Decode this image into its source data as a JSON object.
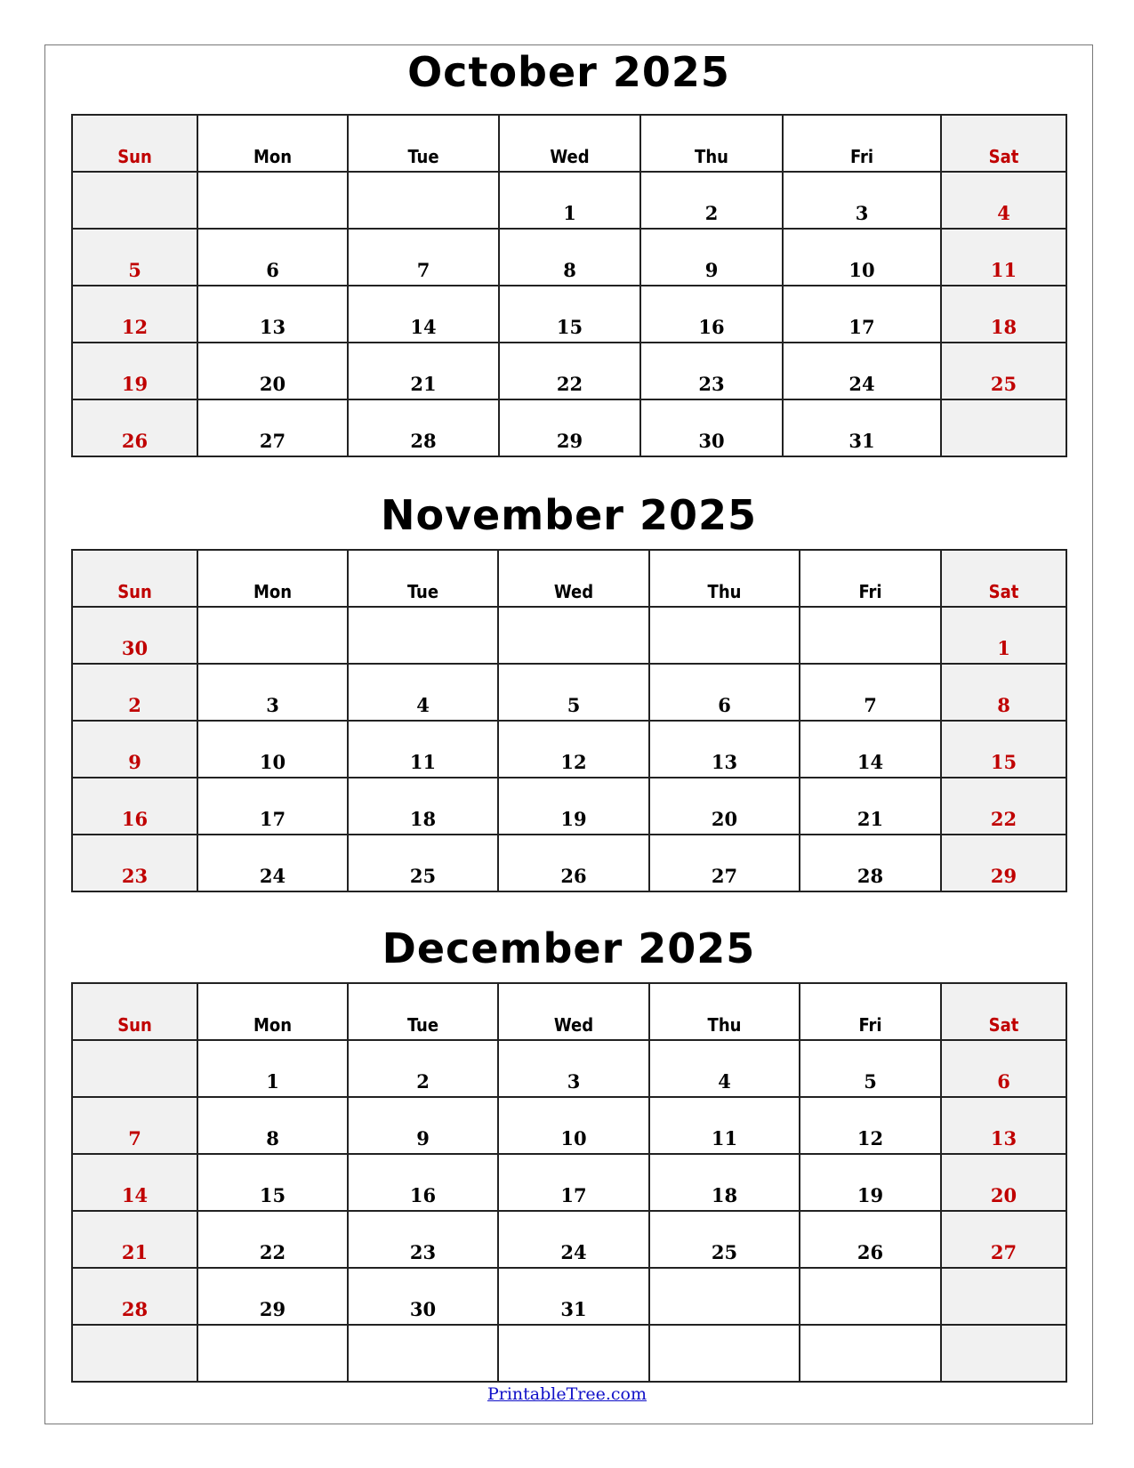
{
  "weekdays": [
    "Sun",
    "Mon",
    "Tue",
    "Wed",
    "Thu",
    "Fri",
    "Sat"
  ],
  "colors": {
    "weekend_text": "#c00000",
    "weekend_bg": "#f1f1f1",
    "link": "#1010c8"
  },
  "months": [
    {
      "title": "October 2025",
      "weeks": [
        [
          "",
          "",
          "",
          "1",
          "2",
          "3",
          "4"
        ],
        [
          "5",
          "6",
          "7",
          "8",
          "9",
          "10",
          "11"
        ],
        [
          "12",
          "13",
          "14",
          "15",
          "16",
          "17",
          "18"
        ],
        [
          "19",
          "20",
          "21",
          "22",
          "23",
          "24",
          "25"
        ],
        [
          "26",
          "27",
          "28",
          "29",
          "30",
          "31",
          ""
        ]
      ]
    },
    {
      "title": "November 2025",
      "weeks": [
        [
          "30",
          "",
          "",
          "",
          "",
          "",
          "1"
        ],
        [
          "2",
          "3",
          "4",
          "5",
          "6",
          "7",
          "8"
        ],
        [
          "9",
          "10",
          "11",
          "12",
          "13",
          "14",
          "15"
        ],
        [
          "16",
          "17",
          "18",
          "19",
          "20",
          "21",
          "22"
        ],
        [
          "23",
          "24",
          "25",
          "26",
          "27",
          "28",
          "29"
        ]
      ]
    },
    {
      "title": "December 2025",
      "weeks": [
        [
          "",
          "1",
          "2",
          "3",
          "4",
          "5",
          "6"
        ],
        [
          "7",
          "8",
          "9",
          "10",
          "11",
          "12",
          "13"
        ],
        [
          "14",
          "15",
          "16",
          "17",
          "18",
          "19",
          "20"
        ],
        [
          "21",
          "22",
          "23",
          "24",
          "25",
          "26",
          "27"
        ],
        [
          "28",
          "29",
          "30",
          "31",
          "",
          "",
          ""
        ],
        [
          "",
          "",
          "",
          "",
          "",
          "",
          ""
        ]
      ]
    }
  ],
  "footer": {
    "link_text": "PrintableTree.com"
  }
}
